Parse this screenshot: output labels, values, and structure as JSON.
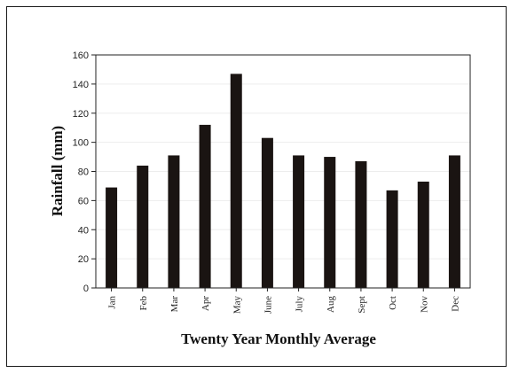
{
  "chart_data": {
    "type": "bar",
    "categories": [
      "Jan",
      "Feb",
      "Mar",
      "Apr",
      "May",
      "June",
      "July",
      "Aug",
      "Sept",
      "Oct",
      "Nov",
      "Dec"
    ],
    "values": [
      69,
      84,
      91,
      112,
      147,
      103,
      91,
      90,
      87,
      67,
      73,
      91
    ],
    "xlabel": "Twenty Year Monthly Average",
    "ylabel": "Rainfall (mm)",
    "ylim": [
      0,
      160
    ],
    "yticks": [
      "0",
      "20",
      "40",
      "60",
      "80",
      "100",
      "120",
      "140",
      "160"
    ],
    "grid": true,
    "bar_color": "#1a1412"
  }
}
